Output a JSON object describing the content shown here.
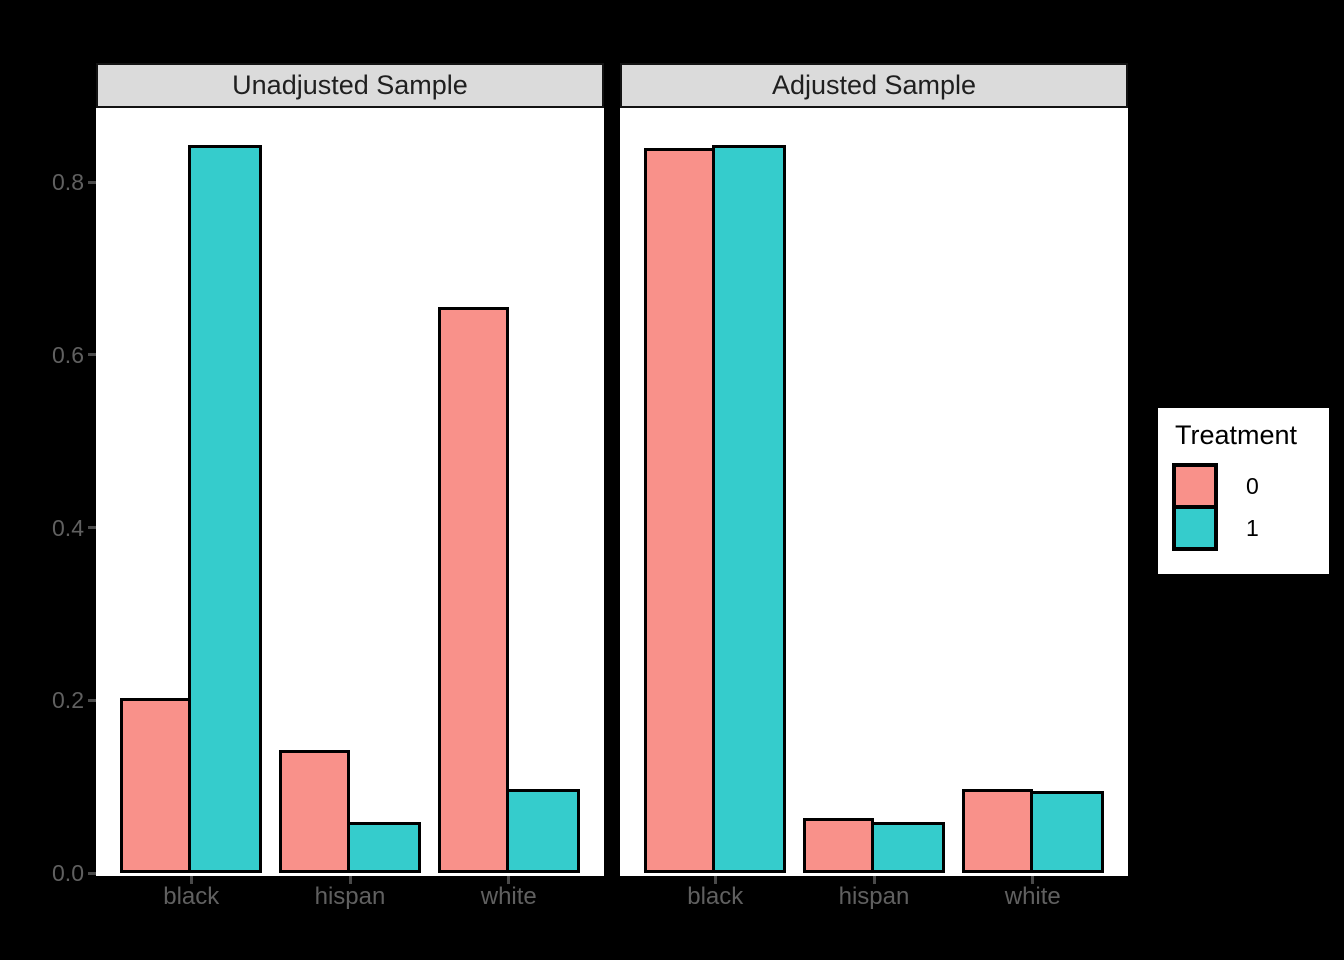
{
  "colors": {
    "background": "#000000",
    "panel_background": "#ffffff",
    "strip_background": "#dbdbdb",
    "strip_text": "#1f1f1f",
    "axis_text": "#606060",
    "bar_outline": "#000000",
    "treatment_0": "#f9918a",
    "treatment_1": "#35cccc"
  },
  "legend": {
    "title": "Treatment",
    "items": [
      {
        "label": "0",
        "color": "#f9918a"
      },
      {
        "label": "1",
        "color": "#35cccc"
      }
    ]
  },
  "chart_data": {
    "type": "bar",
    "title": "",
    "xlabel": "",
    "ylabel": "",
    "categories": [
      "black",
      "hispan",
      "white"
    ],
    "facets": [
      {
        "label": "Unadjusted Sample",
        "series": [
          {
            "name": "0",
            "values": [
              0.203,
              0.142,
              0.655
            ]
          },
          {
            "name": "1",
            "values": [
              0.843,
              0.059,
              0.097
            ]
          }
        ]
      },
      {
        "label": "Adjusted Sample",
        "series": [
          {
            "name": "0",
            "values": [
              0.839,
              0.064,
              0.097
            ]
          },
          {
            "name": "1",
            "values": [
              0.843,
              0.059,
              0.095
            ]
          }
        ]
      }
    ],
    "series_colors": {
      "0": "#f9918a",
      "1": "#35cccc"
    },
    "y_ticks": [
      "0.0",
      "0.2",
      "0.4",
      "0.6",
      "0.8"
    ],
    "ylim": [
      0,
      0.885
    ],
    "grid": "off",
    "legend_position": "right",
    "legend_title": "Treatment"
  }
}
